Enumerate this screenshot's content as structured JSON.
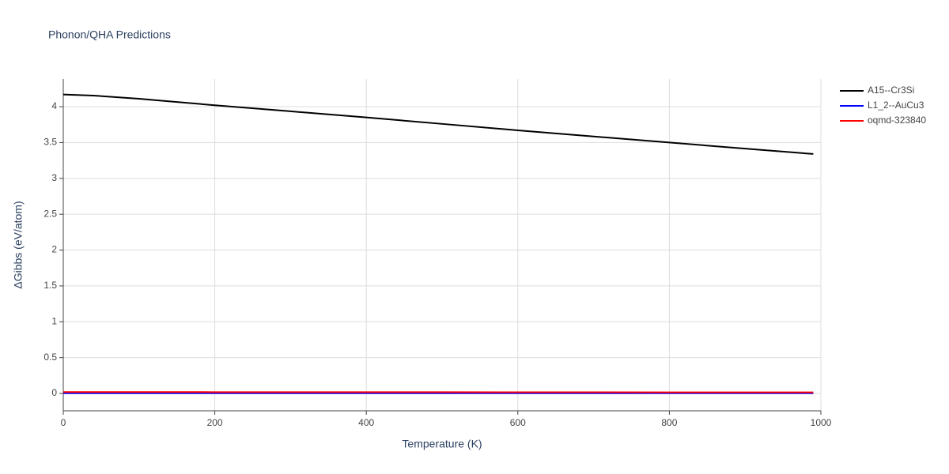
{
  "chart_data": {
    "type": "line",
    "title": "Phonon/QHA Predictions",
    "x_label": "Temperature (K)",
    "y_label": "ΔGibbs (eV/atom)",
    "x": [
      0,
      40,
      100,
      200,
      300,
      400,
      500,
      600,
      700,
      800,
      900,
      990
    ],
    "series": [
      {
        "name": "A15--Cr3Si",
        "color": "#000000",
        "values": [
          4.17,
          4.155,
          4.11,
          4.02,
          3.935,
          3.85,
          3.76,
          3.67,
          3.585,
          3.5,
          3.415,
          3.34
        ]
      },
      {
        "name": "L1_2--AuCu3",
        "color": "#0000ff",
        "values": [
          0.003,
          0.003,
          0.003,
          0.003,
          0.003,
          0.003,
          0.003,
          0.003,
          0.003,
          0.003,
          0.003,
          0.003
        ]
      },
      {
        "name": "oqmd-323840",
        "color": "#ff0000",
        "values": [
          0.02,
          0.02,
          0.02,
          0.019,
          0.019,
          0.018,
          0.018,
          0.017,
          0.017,
          0.016,
          0.016,
          0.015
        ]
      }
    ],
    "xlim": [
      0,
      1000
    ],
    "xticks": [
      0,
      200,
      400,
      600,
      800,
      1000
    ],
    "ylim": [
      -0.242,
      4.386
    ],
    "yticks": [
      0,
      0.5,
      1,
      1.5,
      2,
      2.5,
      3,
      3.5,
      4
    ],
    "grid": true,
    "legend": "right"
  }
}
